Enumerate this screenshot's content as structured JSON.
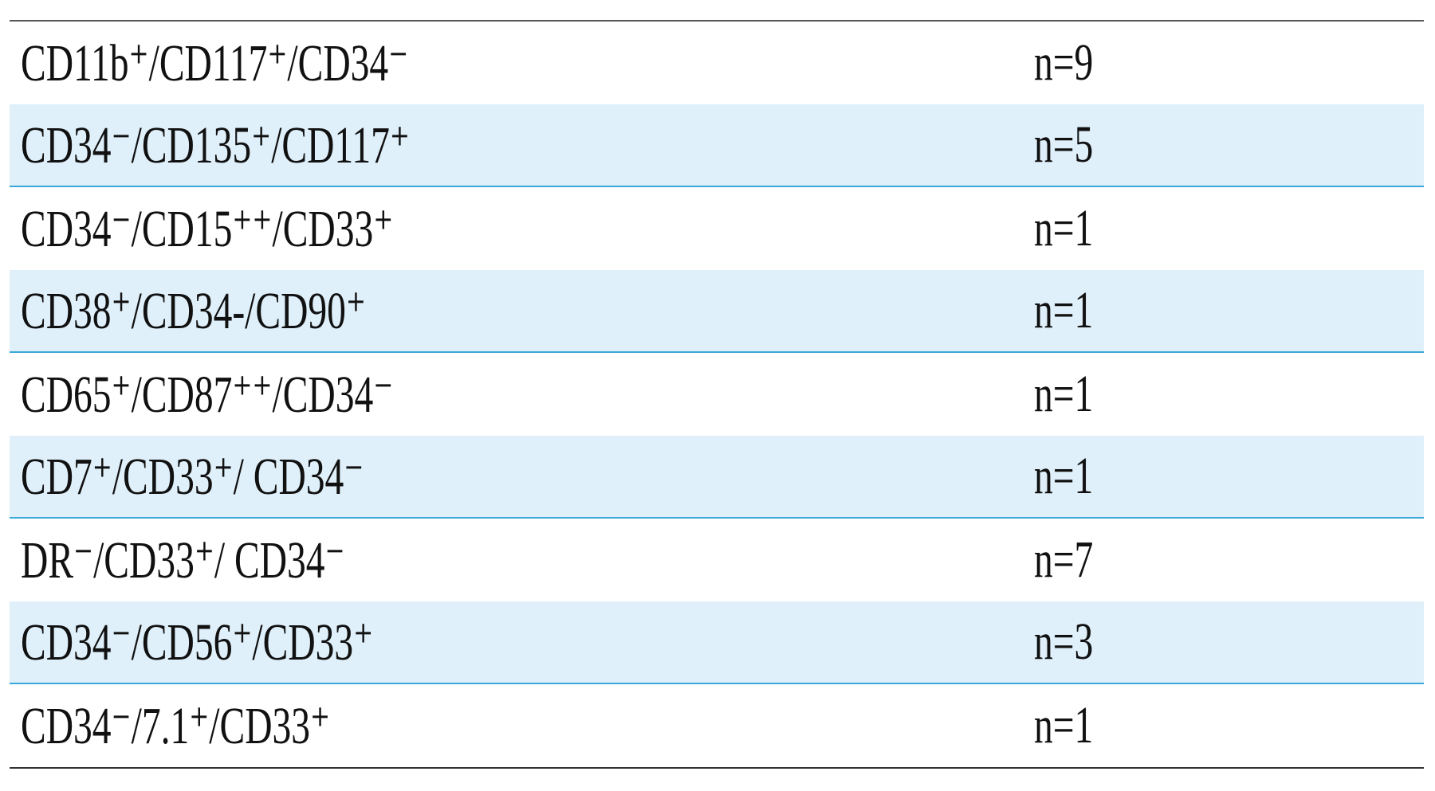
{
  "table": {
    "rows": [
      [
        "CD11b⁺/CD117⁺/CD34⁻",
        "n=9"
      ],
      [
        "CD34⁻/CD135⁺/CD117⁺",
        "n=5"
      ],
      [
        "CD34⁻/CD15⁺⁺/CD33⁺",
        "n=1"
      ],
      [
        "CD38⁺/CD34-/CD90⁺",
        "n=1"
      ],
      [
        "CD65⁺/CD87⁺⁺/CD34⁻",
        "n=1"
      ],
      [
        "CD7⁺/CD33⁺/ CD34⁻",
        "n=1"
      ],
      [
        "DR⁻/CD33⁺/ CD34⁻",
        "n=7"
      ],
      [
        "CD34⁻/CD56⁺/CD33⁺",
        "n=3"
      ],
      [
        "CD34⁻/7.1⁺/CD33⁺",
        "n=1"
      ]
    ]
  }
}
